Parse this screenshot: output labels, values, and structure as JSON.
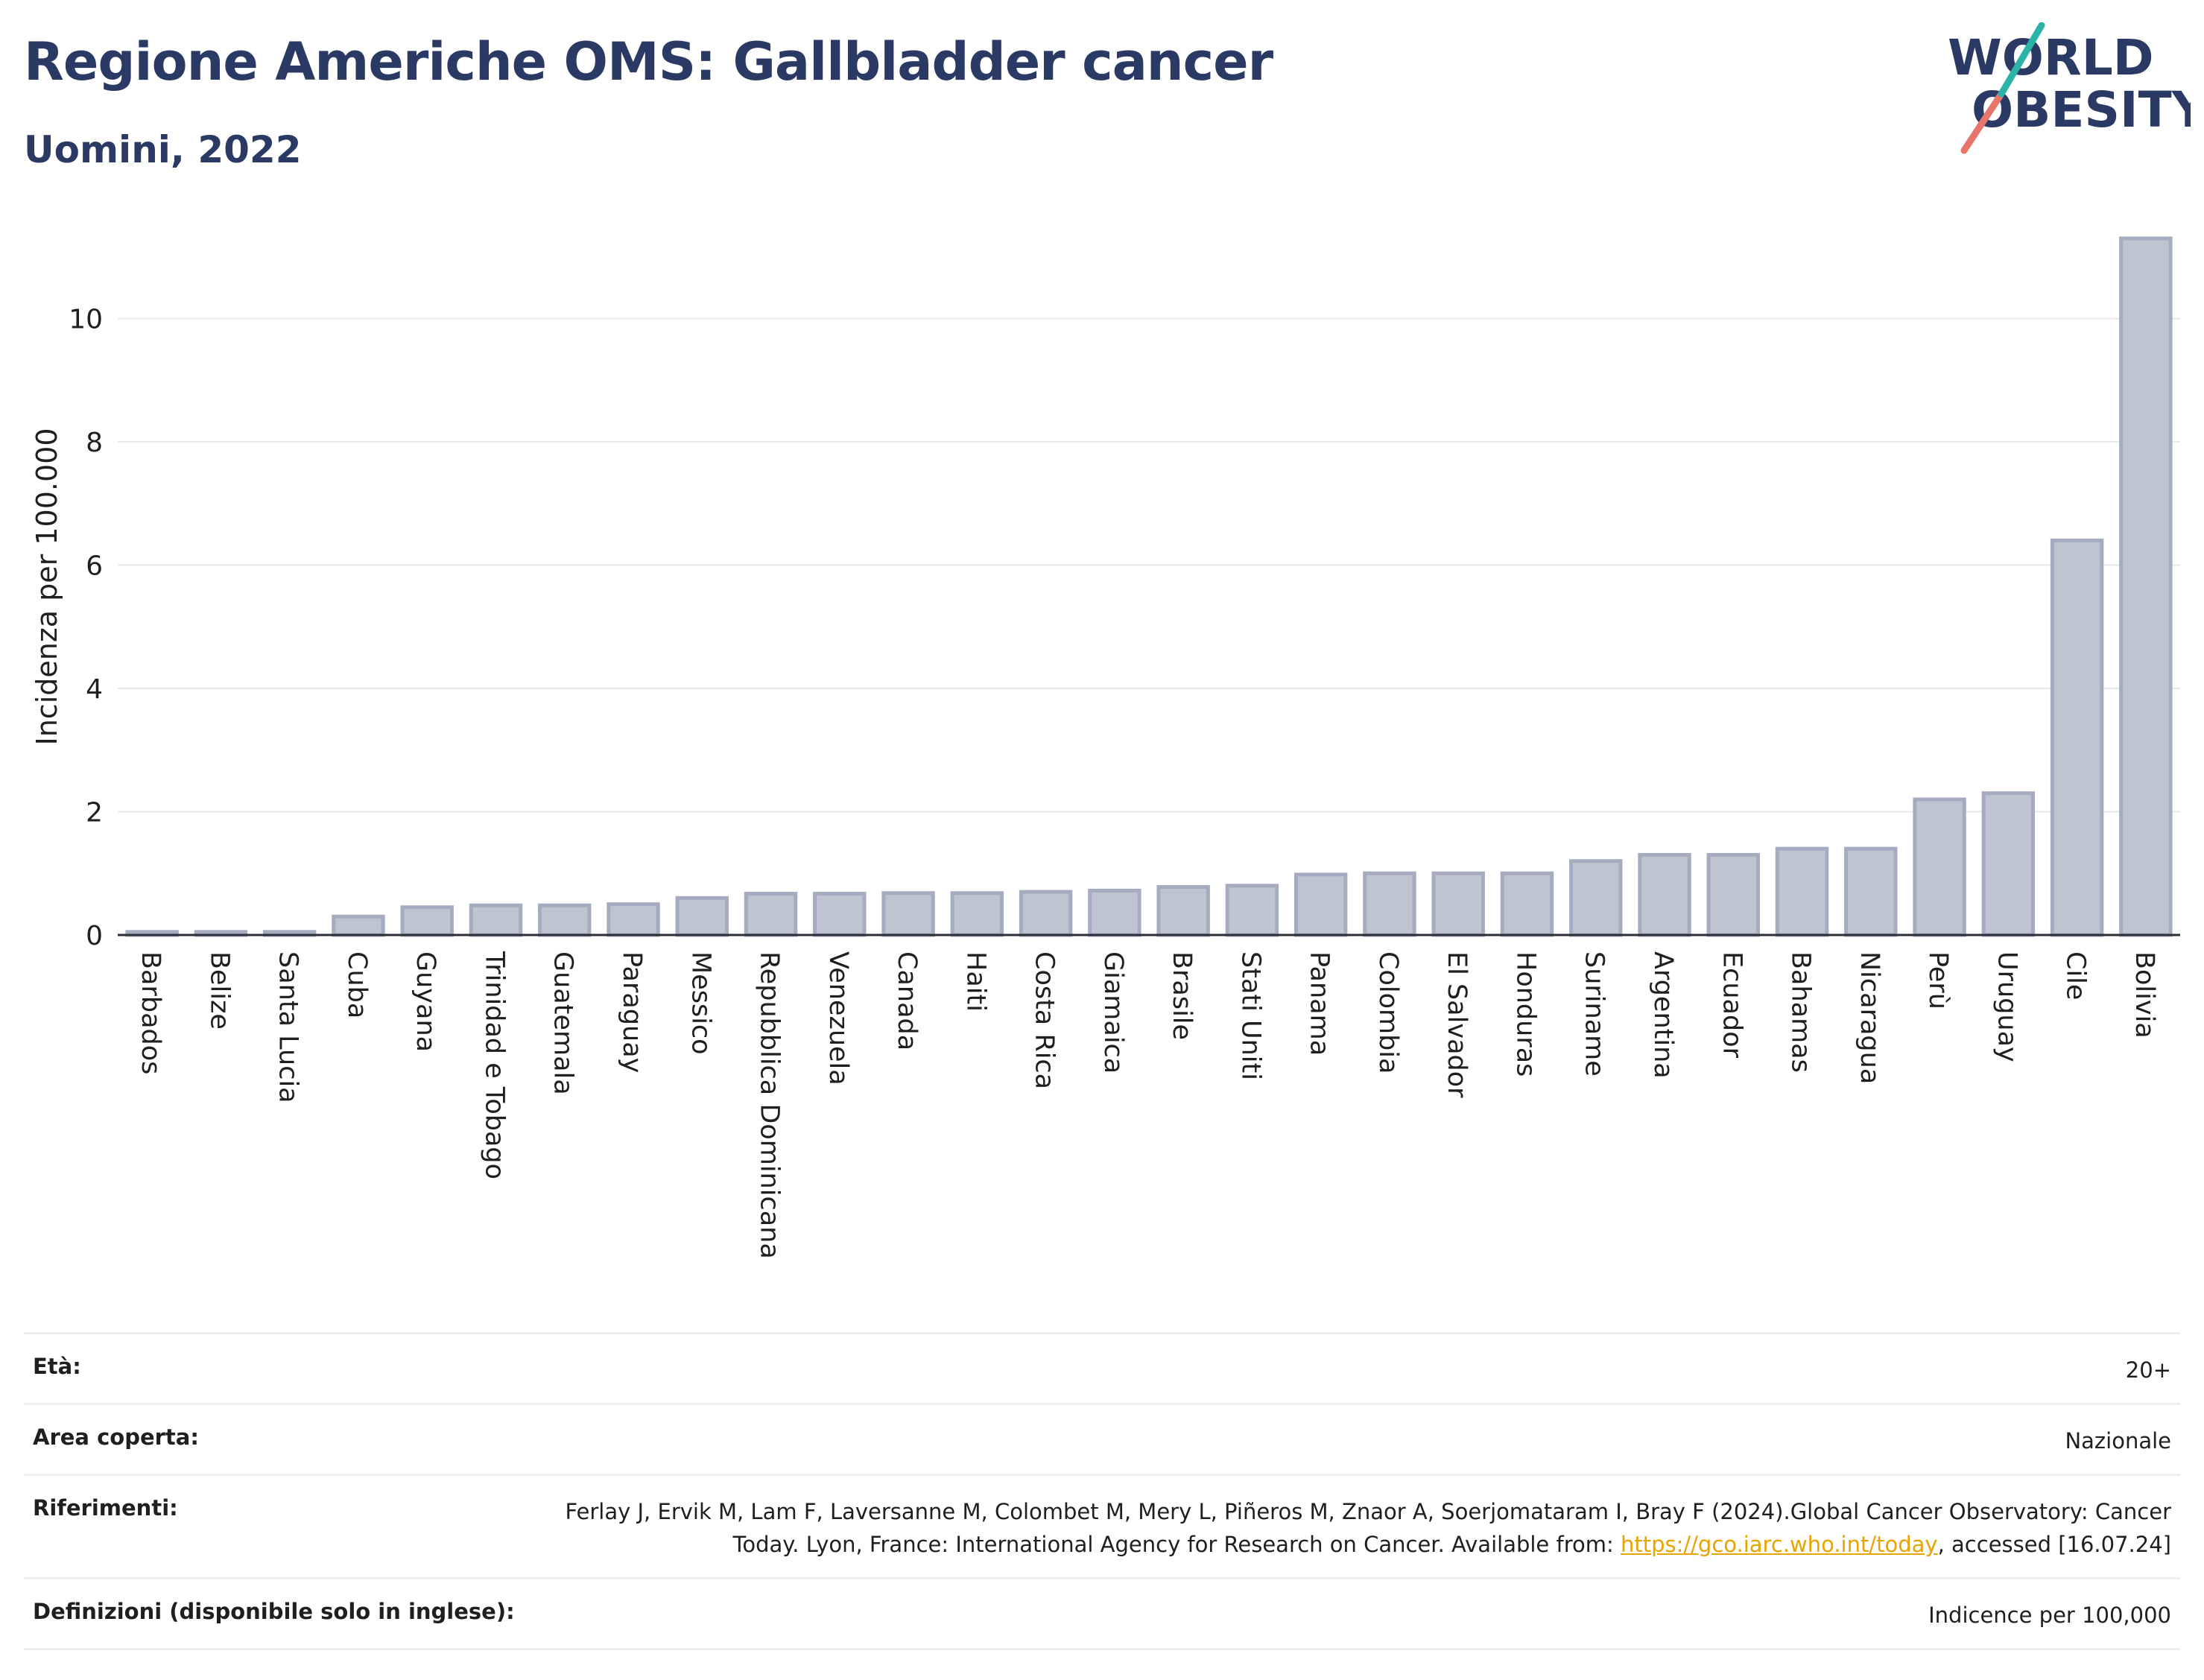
{
  "header": {
    "title": "Regione Americhe OMS: Gallbladder cancer",
    "subtitle": "Uomini, 2022"
  },
  "logo": {
    "line1": "WORLD",
    "line2": "OBESITY"
  },
  "colors": {
    "bar_fill": "#bfc4d1",
    "bar_stroke": "#a6acbf",
    "title": "#2b3a64",
    "link": "#e8a400",
    "logo_teal": "#2ab3a6",
    "logo_coral": "#e8756a",
    "logo_navy": "#2b3a64"
  },
  "chart_data": {
    "type": "bar",
    "title": "Regione Americhe OMS: Gallbladder cancer",
    "subtitle": "Uomini, 2022",
    "ylabel": "Incidenza per 100.000",
    "xlabel": "",
    "ylim": [
      0,
      11.3
    ],
    "yticks": [
      0,
      2,
      4,
      6,
      8,
      10
    ],
    "grid": true,
    "categories": [
      "Barbados",
      "Belize",
      "Santa Lucia",
      "Cuba",
      "Guyana",
      "Trinidad e Tobago",
      "Guatemala",
      "Paraguay",
      "Messico",
      "Repubblica Dominicana",
      "Venezuela",
      "Canada",
      "Haiti",
      "Costa Rica",
      "Giamaica",
      "Brasile",
      "Stati Uniti",
      "Panama",
      "Colombia",
      "El Salvador",
      "Honduras",
      "Suriname",
      "Argentina",
      "Ecuador",
      "Bahamas",
      "Nicaragua",
      "Perù",
      "Uruguay",
      "Cile",
      "Bolivia"
    ],
    "values": [
      0.05,
      0.05,
      0.05,
      0.3,
      0.45,
      0.48,
      0.48,
      0.5,
      0.6,
      0.67,
      0.67,
      0.68,
      0.68,
      0.7,
      0.72,
      0.78,
      0.8,
      0.98,
      1.0,
      1.0,
      1.0,
      1.2,
      1.3,
      1.3,
      1.4,
      1.4,
      2.2,
      2.3,
      6.4,
      11.3
    ]
  },
  "info": {
    "age_label": "Età:",
    "age_value": "20+",
    "area_label": "Area coperta:",
    "area_value": "Nazionale",
    "ref_label": "Riferimenti:",
    "ref_text_1": "Ferlay J, Ervik M, Lam F, Laversanne M, Colombet M, Mery L, Piñeros M, Znaor A, Soerjomataram I, Bray F (2024).Global Cancer Observatory: Cancer Today. Lyon, France: International Agency for Research on Cancer. Available from: ",
    "ref_link": "https://gco.iarc.who.int/today",
    "ref_text_2": ", accessed [16.07.24]",
    "def_label": "Definizioni (disponibile solo in inglese):",
    "def_value": "Indicence per 100,000"
  }
}
